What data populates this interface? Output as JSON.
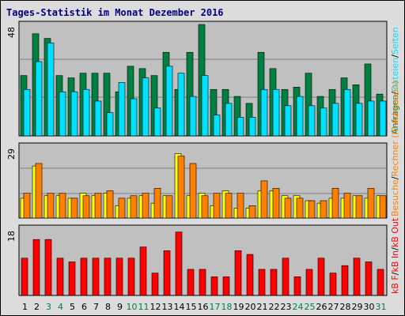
{
  "title": "Tages-Statistik im Monat Dezember 2016",
  "colors": {
    "title": "#000080",
    "plot_bg": "#c0c0c0",
    "grid": "#808080",
    "hits": "#008040",
    "files": "#00e0ff",
    "sites": "#ffff00",
    "visits": "#ff8000",
    "kb_in": "#ff0000",
    "kb_out": "#ff0000",
    "weekend_day": "#008040",
    "weekday": "#000000"
  },
  "legend": {
    "top": [
      {
        "text": "Anfragen",
        "color": "#008040"
      },
      {
        "text": "/",
        "color": "#000000"
      },
      {
        "text": "Dateien",
        "color": "#00e0ff"
      },
      {
        "text": "/",
        "color": "#000000"
      },
      {
        "text": "Seiten",
        "color": "#00e0ff"
      }
    ],
    "middle": [
      {
        "text": "Besuche",
        "color": "#ff8000"
      },
      {
        "text": "/",
        "color": "#000000"
      },
      {
        "text": "Rechner (IP-Adressen)",
        "color": "#ff8000"
      }
    ],
    "bottom": [
      {
        "text": "kB F",
        "color": "#ff0000"
      },
      {
        "text": "/",
        "color": "#000000"
      },
      {
        "text": "kB In",
        "color": "#ff0000"
      },
      {
        "text": "/",
        "color": "#000000"
      },
      {
        "text": "kB Out",
        "color": "#ff0000"
      }
    ]
  },
  "chart_data": [
    {
      "type": "bar",
      "panel": "hits-files",
      "ymax_label": "48",
      "ylim": [
        0,
        48
      ],
      "x": [
        1,
        2,
        3,
        4,
        5,
        6,
        7,
        8,
        9,
        10,
        11,
        12,
        13,
        14,
        15,
        16,
        17,
        18,
        19,
        20,
        21,
        22,
        23,
        24,
        25,
        26,
        27,
        28,
        29,
        30,
        31
      ],
      "series": [
        {
          "name": "Anfragen",
          "values": [
            26,
            44,
            42,
            26,
            25,
            27,
            27,
            27,
            19,
            30,
            29,
            26,
            36,
            20,
            36,
            48,
            20,
            20,
            17,
            14,
            36,
            29,
            20,
            21,
            27,
            17,
            20,
            25,
            22,
            31,
            18
          ]
        },
        {
          "name": "Dateien",
          "values": [
            20,
            32,
            40,
            19,
            19,
            20,
            15,
            10,
            23,
            16,
            25,
            12,
            30,
            27,
            17,
            26,
            9,
            14,
            8,
            8,
            20,
            20,
            13,
            17,
            13,
            12,
            14,
            20,
            14,
            15,
            15
          ]
        }
      ]
    },
    {
      "type": "bar",
      "panel": "sites-visits",
      "ymax_label": "29",
      "ylim": [
        0,
        29
      ],
      "x": [
        1,
        2,
        3,
        4,
        5,
        6,
        7,
        8,
        9,
        10,
        11,
        12,
        13,
        14,
        15,
        16,
        17,
        18,
        19,
        20,
        21,
        22,
        23,
        24,
        25,
        26,
        27,
        28,
        29,
        30,
        31
      ],
      "series": [
        {
          "name": "Seiten",
          "values": [
            8,
            21,
            9,
            9,
            8,
            10,
            9,
            10,
            5,
            8,
            9,
            6,
            9,
            26,
            9,
            10,
            5,
            11,
            4,
            4,
            11,
            11,
            9,
            9,
            7,
            6,
            8,
            8,
            9,
            8,
            9
          ]
        },
        {
          "name": "Besuche",
          "values": [
            10,
            22,
            10,
            10,
            8,
            9,
            10,
            11,
            8,
            9,
            10,
            12,
            9,
            25,
            22,
            9,
            10,
            10,
            10,
            5,
            15,
            12,
            8,
            8,
            7,
            7,
            12,
            10,
            9,
            12,
            9
          ]
        }
      ]
    },
    {
      "type": "bar",
      "panel": "kbytes",
      "ymax_label": "18",
      "ylim": [
        0,
        18
      ],
      "x": [
        1,
        2,
        3,
        4,
        5,
        6,
        7,
        8,
        9,
        10,
        11,
        12,
        13,
        14,
        15,
        16,
        17,
        18,
        19,
        20,
        21,
        22,
        23,
        24,
        25,
        26,
        27,
        28,
        29,
        30,
        31
      ],
      "series": [
        {
          "name": "kB F",
          "values": [
            10,
            15,
            15,
            10,
            9,
            10,
            10,
            10,
            10,
            10,
            13,
            6,
            12,
            17,
            7,
            7,
            5,
            5,
            12,
            11,
            7,
            7,
            10,
            5,
            7,
            10,
            6,
            8,
            10,
            9,
            7
          ]
        }
      ]
    }
  ],
  "x_axis": {
    "labels": [
      {
        "text": "1",
        "weekend": false
      },
      {
        "text": "2",
        "weekend": false
      },
      {
        "text": "3",
        "weekend": true
      },
      {
        "text": "4",
        "weekend": true
      },
      {
        "text": "5",
        "weekend": false
      },
      {
        "text": "6",
        "weekend": false
      },
      {
        "text": "7",
        "weekend": false
      },
      {
        "text": "8",
        "weekend": false
      },
      {
        "text": "9",
        "weekend": false
      },
      {
        "text": "10",
        "weekend": true
      },
      {
        "text": "11",
        "weekend": true
      },
      {
        "text": "12",
        "weekend": false
      },
      {
        "text": "13",
        "weekend": false
      },
      {
        "text": "14",
        "weekend": false
      },
      {
        "text": "15",
        "weekend": false
      },
      {
        "text": "16",
        "weekend": false
      },
      {
        "text": "17",
        "weekend": true
      },
      {
        "text": "18",
        "weekend": true
      },
      {
        "text": "19",
        "weekend": false
      },
      {
        "text": "20",
        "weekend": false
      },
      {
        "text": "21",
        "weekend": false
      },
      {
        "text": "22",
        "weekend": false
      },
      {
        "text": "23",
        "weekend": false
      },
      {
        "text": "24",
        "weekend": true
      },
      {
        "text": "25",
        "weekend": true
      },
      {
        "text": "26",
        "weekend": false
      },
      {
        "text": "27",
        "weekend": false
      },
      {
        "text": "28",
        "weekend": false
      },
      {
        "text": "29",
        "weekend": false
      },
      {
        "text": "30",
        "weekend": false
      },
      {
        "text": "31",
        "weekend": true
      }
    ]
  }
}
